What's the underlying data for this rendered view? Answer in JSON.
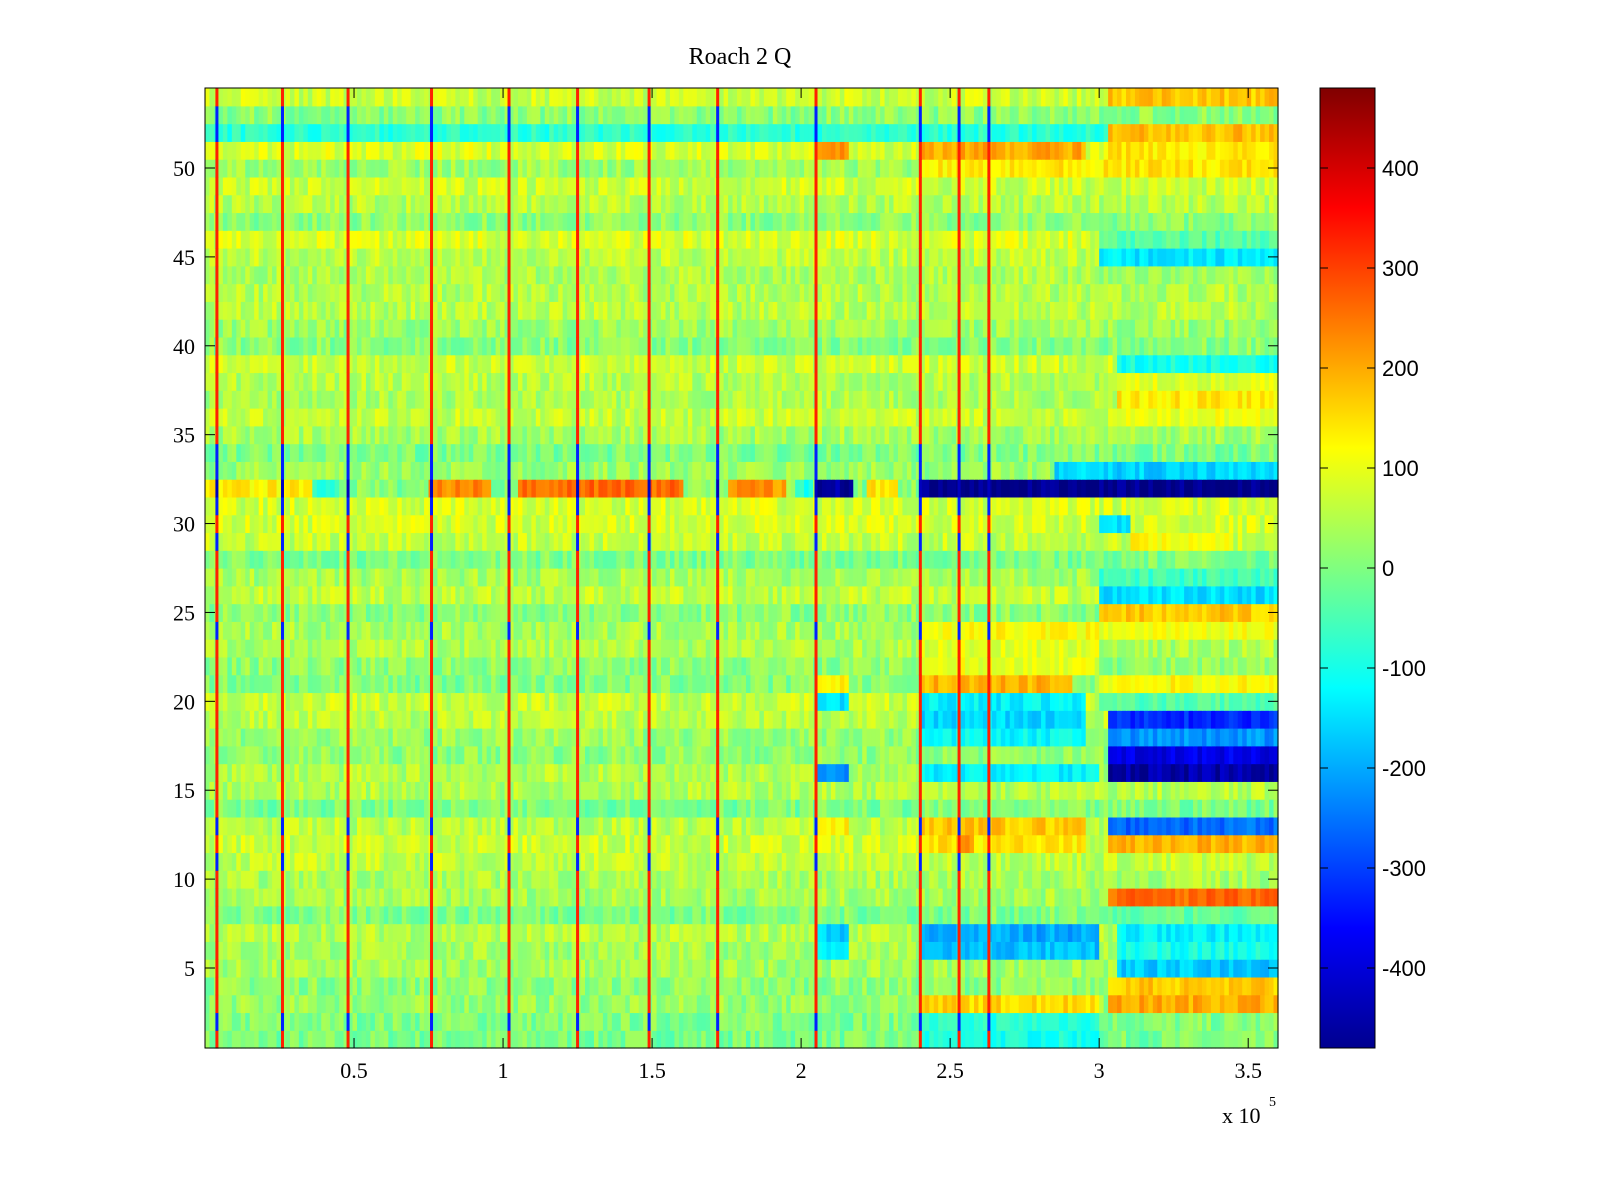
{
  "chart_data": {
    "type": "heatmap",
    "title": "Roach 2 Q",
    "xlabel": "",
    "ylabel": "",
    "x_multiplier_label": "x 10",
    "x_multiplier_exponent": "5",
    "xlim": [
      0,
      360000
    ],
    "ylim": [
      0.5,
      54.5
    ],
    "x_ticks": [
      0.5,
      1,
      1.5,
      2,
      2.5,
      3,
      3.5
    ],
    "x_tick_labels": [
      "0.5",
      "1",
      "1.5",
      "2",
      "2.5",
      "3",
      "3.5"
    ],
    "y_ticks": [
      5,
      10,
      15,
      20,
      25,
      30,
      35,
      40,
      45,
      50
    ],
    "y_tick_labels": [
      "5",
      "10",
      "15",
      "20",
      "25",
      "30",
      "35",
      "40",
      "45",
      "50"
    ],
    "colormap": "jet",
    "clim": [
      -480,
      480
    ],
    "colorbar_ticks": [
      400,
      300,
      200,
      100,
      0,
      -100,
      -200,
      -300,
      -400
    ],
    "colorbar_tick_labels": [
      "400",
      "300",
      "200",
      "100",
      "0",
      "-100",
      "-200",
      "-300",
      "-400"
    ],
    "rows": 54,
    "base_value": 40,
    "stripes_red_x": [
      4000,
      26000,
      48000,
      76000,
      102000,
      125000,
      149000,
      172000,
      205000,
      240000,
      253000,
      263000
    ],
    "stripes_blue_rows": [
      2,
      11,
      13,
      24,
      29,
      31,
      33,
      34,
      52,
      53
    ],
    "regions": [
      {
        "row": 32,
        "x": [
          0,
          45000
        ],
        "value": 130
      },
      {
        "row": 32,
        "x": [
          75000,
          95000
        ],
        "value": 230
      },
      {
        "row": 32,
        "x": [
          105000,
          160000
        ],
        "value": 260
      },
      {
        "row": 32,
        "x": [
          175000,
          195000
        ],
        "value": 220
      },
      {
        "row": 32,
        "x": [
          35000,
          45000
        ],
        "value": -80
      },
      {
        "row": 32,
        "x": [
          197000,
          203000
        ],
        "value": -90
      },
      {
        "row": 32,
        "x": [
          205000,
          217000
        ],
        "value": -450
      },
      {
        "row": 32,
        "x": [
          222000,
          232000
        ],
        "value": 140
      },
      {
        "row": 32,
        "x": [
          240000,
          360000
        ],
        "value": -470
      },
      {
        "row": 33,
        "x": [
          285000,
          360000
        ],
        "value": -160
      },
      {
        "row": 52,
        "x": [
          0,
          360000
        ],
        "value": -80
      },
      {
        "row": 51,
        "x": [
          205000,
          215000
        ],
        "value": 210
      },
      {
        "row": 51,
        "x": [
          240000,
          295000
        ],
        "value": 200
      },
      {
        "row": 50,
        "x": [
          240000,
          360000
        ],
        "value": 140
      },
      {
        "row": 54,
        "x": [
          302000,
          360000
        ],
        "value": 170
      },
      {
        "row": 52,
        "x": [
          302000,
          360000
        ],
        "value": 180
      },
      {
        "row": 51,
        "x": [
          302000,
          360000
        ],
        "value": 140
      },
      {
        "row": 46,
        "x": [
          300000,
          360000
        ],
        "value": -40
      },
      {
        "row": 45,
        "x": [
          300000,
          360000
        ],
        "value": -140
      },
      {
        "row": 44,
        "x": [
          300000,
          360000
        ],
        "value": 30
      },
      {
        "row": 39,
        "x": [
          305000,
          360000
        ],
        "value": -100
      },
      {
        "row": 38,
        "x": [
          305000,
          360000
        ],
        "value": 90
      },
      {
        "row": 37,
        "x": [
          305000,
          360000
        ],
        "value": 140
      },
      {
        "row": 36,
        "x": [
          305000,
          360000
        ],
        "value": 100
      },
      {
        "row": 30,
        "x": [
          300000,
          310000
        ],
        "value": -150
      },
      {
        "row": 29,
        "x": [
          310000,
          345000
        ],
        "value": 120
      },
      {
        "row": 27,
        "x": [
          300000,
          360000
        ],
        "value": -60
      },
      {
        "row": 26,
        "x": [
          300000,
          360000
        ],
        "value": -150
      },
      {
        "row": 25,
        "x": [
          300000,
          360000
        ],
        "value": 170
      },
      {
        "row": 24,
        "x": [
          300000,
          360000
        ],
        "value": 110
      },
      {
        "row": 21,
        "x": [
          205000,
          215000
        ],
        "value": 140
      },
      {
        "row": 21,
        "x": [
          240000,
          290000
        ],
        "value": 190
      },
      {
        "row": 20,
        "x": [
          205000,
          215000
        ],
        "value": -150
      },
      {
        "row": 20,
        "x": [
          240000,
          295000
        ],
        "value": -130
      },
      {
        "row": 19,
        "x": [
          240000,
          295000
        ],
        "value": -160
      },
      {
        "row": 18,
        "x": [
          240000,
          295000
        ],
        "value": -120
      },
      {
        "row": 21,
        "x": [
          300000,
          360000
        ],
        "value": 120
      },
      {
        "row": 20,
        "x": [
          300000,
          360000
        ],
        "value": -40
      },
      {
        "row": 19,
        "x": [
          302000,
          360000
        ],
        "value": -320
      },
      {
        "row": 18,
        "x": [
          302000,
          360000
        ],
        "value": -220
      },
      {
        "row": 17,
        "x": [
          302000,
          360000
        ],
        "value": -380
      },
      {
        "row": 16,
        "x": [
          302000,
          360000
        ],
        "value": -440
      },
      {
        "row": 16,
        "x": [
          205000,
          215000
        ],
        "value": -230
      },
      {
        "row": 16,
        "x": [
          240000,
          300000
        ],
        "value": -130
      },
      {
        "row": 13,
        "x": [
          205000,
          215000
        ],
        "value": 130
      },
      {
        "row": 13,
        "x": [
          240000,
          295000
        ],
        "value": 170
      },
      {
        "row": 12,
        "x": [
          240000,
          295000
        ],
        "value": 140
      },
      {
        "row": 12,
        "x": [
          253000,
          258000
        ],
        "value": 240
      },
      {
        "row": 13,
        "x": [
          302000,
          360000
        ],
        "value": -260
      },
      {
        "row": 12,
        "x": [
          302000,
          360000
        ],
        "value": 190
      },
      {
        "row": 9,
        "x": [
          302000,
          360000
        ],
        "value": 260
      },
      {
        "row": 8,
        "x": [
          302000,
          360000
        ],
        "value": -30
      },
      {
        "row": 7,
        "x": [
          205000,
          215000
        ],
        "value": -160
      },
      {
        "row": 7,
        "x": [
          240000,
          300000
        ],
        "value": -200
      },
      {
        "row": 6,
        "x": [
          205000,
          215000
        ],
        "value": -130
      },
      {
        "row": 6,
        "x": [
          240000,
          300000
        ],
        "value": -180
      },
      {
        "row": 7,
        "x": [
          305000,
          360000
        ],
        "value": -130
      },
      {
        "row": 6,
        "x": [
          305000,
          360000
        ],
        "value": -100
      },
      {
        "row": 5,
        "x": [
          305000,
          360000
        ],
        "value": -170
      },
      {
        "row": 4,
        "x": [
          302000,
          360000
        ],
        "value": 170
      },
      {
        "row": 3,
        "x": [
          302000,
          360000
        ],
        "value": 200
      },
      {
        "row": 3,
        "x": [
          240000,
          300000
        ],
        "value": 160
      },
      {
        "row": 2,
        "x": [
          240000,
          300000
        ],
        "value": -80
      },
      {
        "row": 1,
        "x": [
          240000,
          300000
        ],
        "value": -100
      },
      {
        "row": 23,
        "x": [
          256000,
          262000
        ],
        "value": -250
      },
      {
        "row": 24,
        "x": [
          240000,
          300000
        ],
        "value": 120
      },
      {
        "row": 23,
        "x": [
          240000,
          300000
        ],
        "value": 90
      },
      {
        "row": 22,
        "x": [
          240000,
          300000
        ],
        "value": 100
      }
    ]
  }
}
